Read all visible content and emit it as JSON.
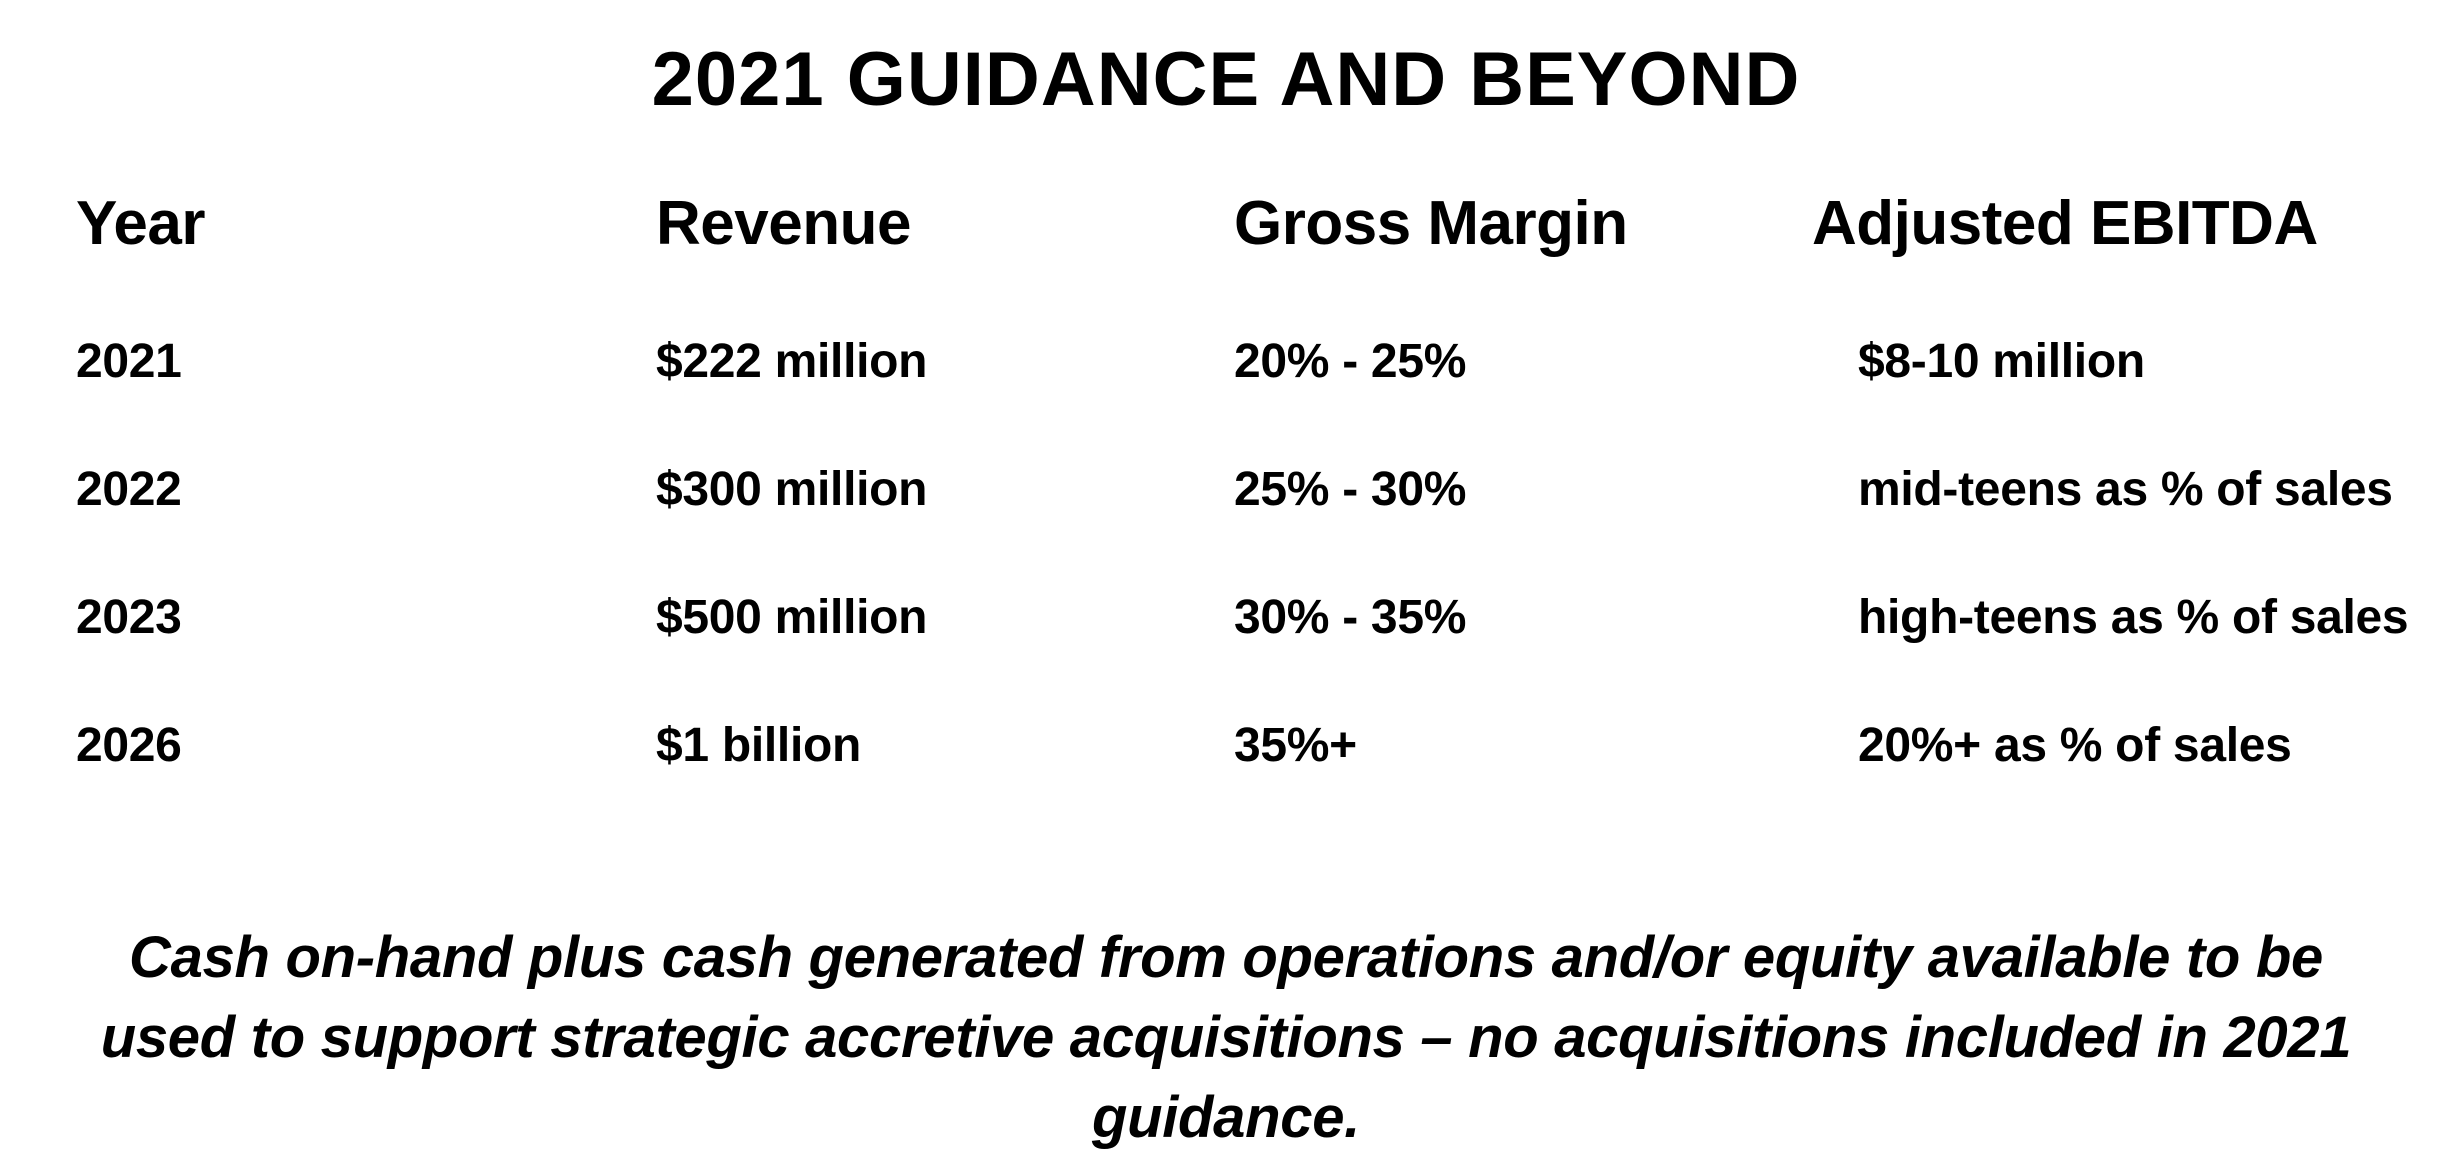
{
  "title": "2021 GUIDANCE AND BEYOND",
  "table": {
    "headers": [
      "Year",
      "Revenue",
      "Gross Margin",
      "Adjusted EBITDA"
    ],
    "rows": [
      [
        "2021",
        "$222 million",
        "20% - 25%",
        "$8-10 million"
      ],
      [
        "2022",
        "$300 million",
        "25% - 30%",
        "mid-teens as % of sales"
      ],
      [
        "2023",
        "$500 million",
        "30% - 35%",
        "high-teens as % of sales"
      ],
      [
        "2026",
        "$1 billion",
        "35%+",
        "20%+ as % of sales"
      ]
    ]
  },
  "footnote": "Cash on-hand plus cash generated from operations and/or equity available to be used to support strategic accretive acquisitions – no acquisitions included in 2021 guidance."
}
